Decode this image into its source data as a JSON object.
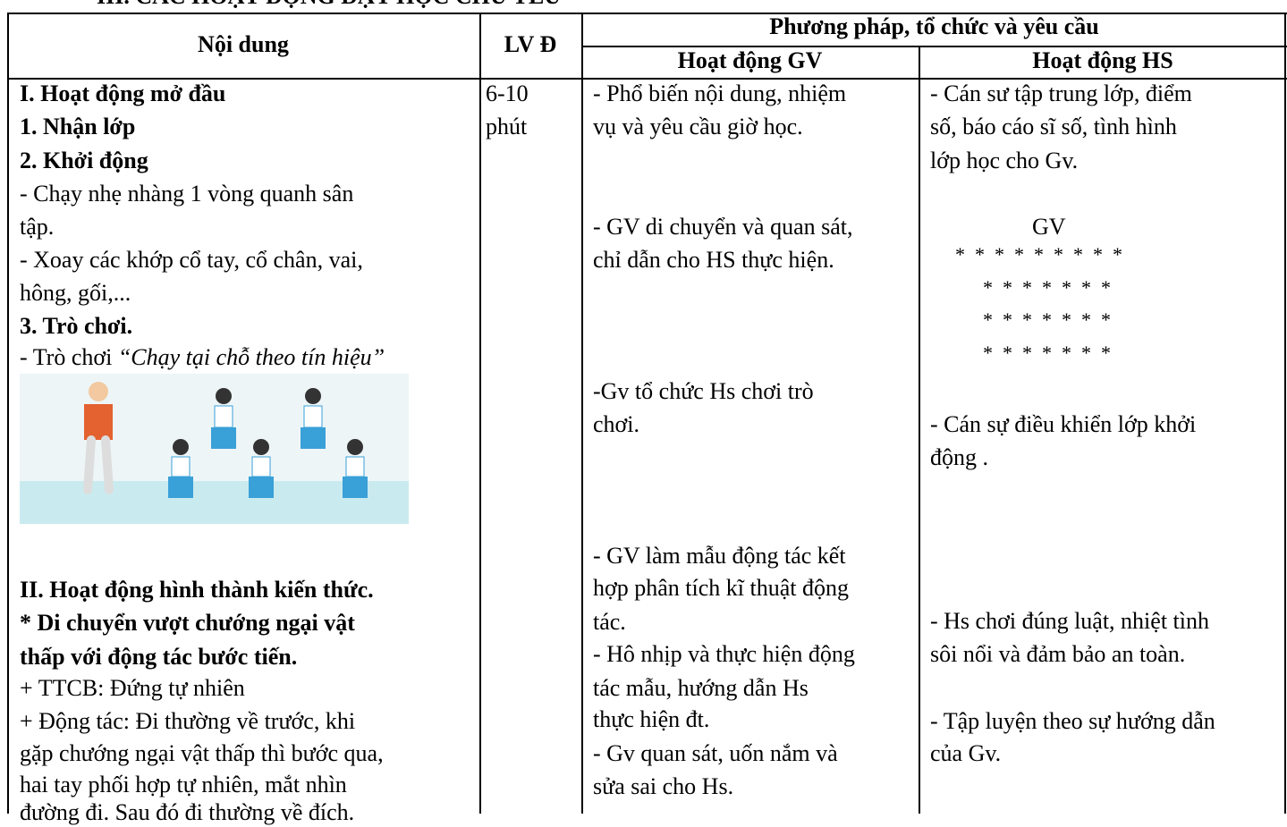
{
  "header": {
    "section_title": "III. CÁC HOẠT ĐỘNG DẠY HỌC CHỦ YẾU",
    "col_content": "Nội dung",
    "col_time": "LV Đ",
    "col_method": "Phương pháp, tổ chức và yêu cầu",
    "col_teacher": "Hoạt động GV",
    "col_student": "Hoạt động HS"
  },
  "content": [
    "I. Hoạt động mở đầu",
    "1. Nhận lớp",
    "2. Khởi động",
    "- Chạy nhẹ nhàng 1 vòng quanh sân",
    "tập.",
    "- Xoay các khớp cổ tay, cổ chân, vai,",
    "hông, gối,...",
    "3. Trò chơi.",
    "- Trò chơi ",
    "“Chạy tại chỗ theo tín hiệu”",
    "II. Hoạt động hình thành kiến thức.",
    "* Di chuyển vượt chướng ngại vật",
    "thấp với động tác bước tiến.",
    "+ TTCB: Đứng tự nhiên",
    "+ Động tác: Đi thường về trước, khi",
    "gặp chướng ngại vật thấp thì bước qua,",
    "hai tay phối hợp tự nhiên, mắt nhìn",
    "đường đi. Sau đó đi thường về đích."
  ],
  "time": [
    "6-10",
    "phút"
  ],
  "teacher": [
    "- Phổ biến nội dung, nhiệm",
    "vụ và yêu cầu giờ học.",
    "- GV di chuyển và quan sát,",
    "chỉ dẫn cho HS thực hiện.",
    "-Gv tổ chức Hs chơi trò",
    "chơi.",
    "- GV làm mẫu động tác kết",
    "hợp phân tích kĩ thuật động",
    "tác.",
    "- Hô nhịp và thực hiện động",
    "tác mẫu, hướng dẫn Hs",
    "thực hiện đt.",
    "- Gv quan sát, uốn nắm và",
    "sửa sai cho Hs."
  ],
  "student": [
    "- Cán sư tập trung lớp, điểm",
    "số, báo cáo sĩ số, tình hình",
    "lớp học cho Gv.",
    "GV",
    "*  *  *  *  *  *  *  *  *",
    "*  *  *  *  *  *  *",
    "*  *  *  *  *  *  *",
    "*  *  *  *  *  *  *",
    "- Cán sự điều khiển lớp khởi",
    "động .",
    "- Hs chơi đúng luật, nhiệt tình",
    "sôi nổi và đảm bảo an toàn.",
    "- Tập luyện theo sự hướng dẫn",
    "của Gv."
  ]
}
